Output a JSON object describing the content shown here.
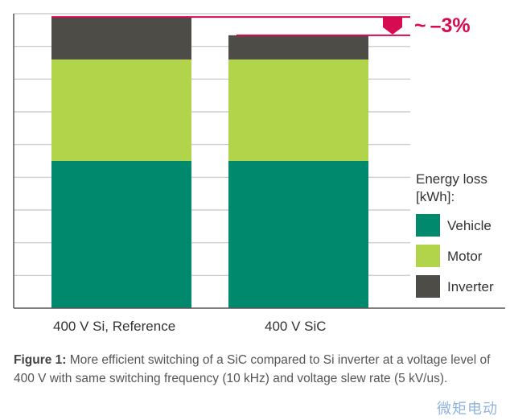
{
  "chart_data": {
    "type": "bar",
    "stacked": true,
    "categories": [
      "400 V Si, Reference",
      "400 V SiC"
    ],
    "series": [
      {
        "name": "Vehicle",
        "values": [
          4.5,
          4.5
        ],
        "color": "#00896d"
      },
      {
        "name": "Motor",
        "values": [
          3.1,
          3.1
        ],
        "color": "#b2d44a"
      },
      {
        "name": "Inverter",
        "values": [
          1.3,
          0.74
        ],
        "color": "#4d4c47"
      }
    ],
    "ylim": [
      0,
      9
    ],
    "grid": true,
    "y_tick_labels": "none",
    "legend_title": "Energy loss [kWh]:",
    "legend_title_lines": [
      "Energy loss",
      "[kWh]:"
    ],
    "legend_position": "right",
    "annotation": {
      "text": "~ –3%",
      "color": "#d60b52"
    }
  },
  "caption": {
    "label": "Figure 1:",
    "text": " More efficient switching of a SiC compared to Si inverter at a voltage level of 400 V with same switching frequency (10 kHz) and voltage slew rate (5 kV/us)."
  },
  "watermark": "微矩电动"
}
